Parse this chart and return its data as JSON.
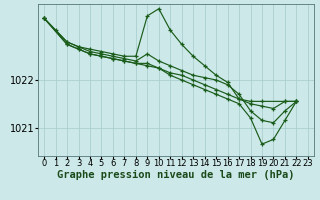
{
  "background_color": "#cce8e8",
  "grid_color": "#aacece",
  "line_color": "#1a5c1a",
  "xlabel": "Graphe pression niveau de la mer (hPa)",
  "xlabel_fontsize": 7.5,
  "ytick_fontsize": 7,
  "xtick_fontsize": 6,
  "ylim": [
    1020.4,
    1023.6
  ],
  "xlim": [
    -0.5,
    23.5
  ],
  "yticks": [
    1021,
    1022
  ],
  "xticks": [
    0,
    1,
    2,
    3,
    4,
    5,
    6,
    7,
    8,
    9,
    10,
    11,
    12,
    13,
    14,
    15,
    16,
    17,
    18,
    19,
    20,
    21,
    22,
    23
  ],
  "series": [
    [
      1023.3,
      1023.05,
      1022.8,
      1022.7,
      1022.65,
      1022.6,
      1022.55,
      1022.5,
      1022.5,
      1023.35,
      1023.5,
      1023.05,
      1022.75,
      1022.5,
      1022.3,
      1022.1,
      1021.95,
      1021.6,
      1021.55,
      1021.55,
      1021.55,
      1021.55
    ],
    [
      1023.3,
      1022.8,
      1022.7,
      1022.6,
      1022.55,
      1022.5,
      1022.45,
      1022.4,
      1022.55,
      1022.4,
      1022.3,
      1022.2,
      1022.1,
      1022.05,
      1022.0,
      1021.9,
      1021.7,
      1021.35,
      1021.15,
      1021.1,
      1021.35,
      1021.55
    ],
    [
      1023.3,
      1022.75,
      1022.65,
      1022.55,
      1022.5,
      1022.45,
      1022.4,
      1022.35,
      1022.35,
      1022.25,
      1022.1,
      1022.0,
      1021.9,
      1021.8,
      1021.7,
      1021.6,
      1021.5,
      1021.2,
      1020.65,
      1020.75,
      1021.15,
      1021.55
    ],
    [
      1023.3,
      1022.75,
      1022.65,
      1022.55,
      1022.5,
      1022.45,
      1022.4,
      1022.35,
      1022.3,
      1022.25,
      1022.15,
      1022.1,
      1022.0,
      1021.9,
      1021.8,
      1021.7,
      1021.6,
      1021.5,
      1021.45,
      1021.4,
      1021.55,
      1021.55
    ]
  ],
  "series_x": [
    [
      0,
      1,
      2,
      3,
      4,
      5,
      6,
      7,
      8,
      9,
      10,
      11,
      12,
      13,
      14,
      15,
      16,
      17,
      18,
      19,
      21,
      22
    ],
    [
      0,
      2,
      3,
      4,
      5,
      6,
      7,
      8,
      9,
      10,
      11,
      12,
      13,
      14,
      15,
      16,
      17,
      18,
      19,
      20,
      21,
      22
    ],
    [
      0,
      2,
      3,
      4,
      5,
      6,
      7,
      8,
      9,
      10,
      11,
      12,
      13,
      14,
      15,
      16,
      17,
      18,
      19,
      20,
      21,
      22
    ],
    [
      0,
      2,
      3,
      4,
      5,
      6,
      7,
      8,
      9,
      10,
      11,
      12,
      13,
      14,
      15,
      16,
      17,
      18,
      19,
      20,
      21,
      22
    ]
  ]
}
